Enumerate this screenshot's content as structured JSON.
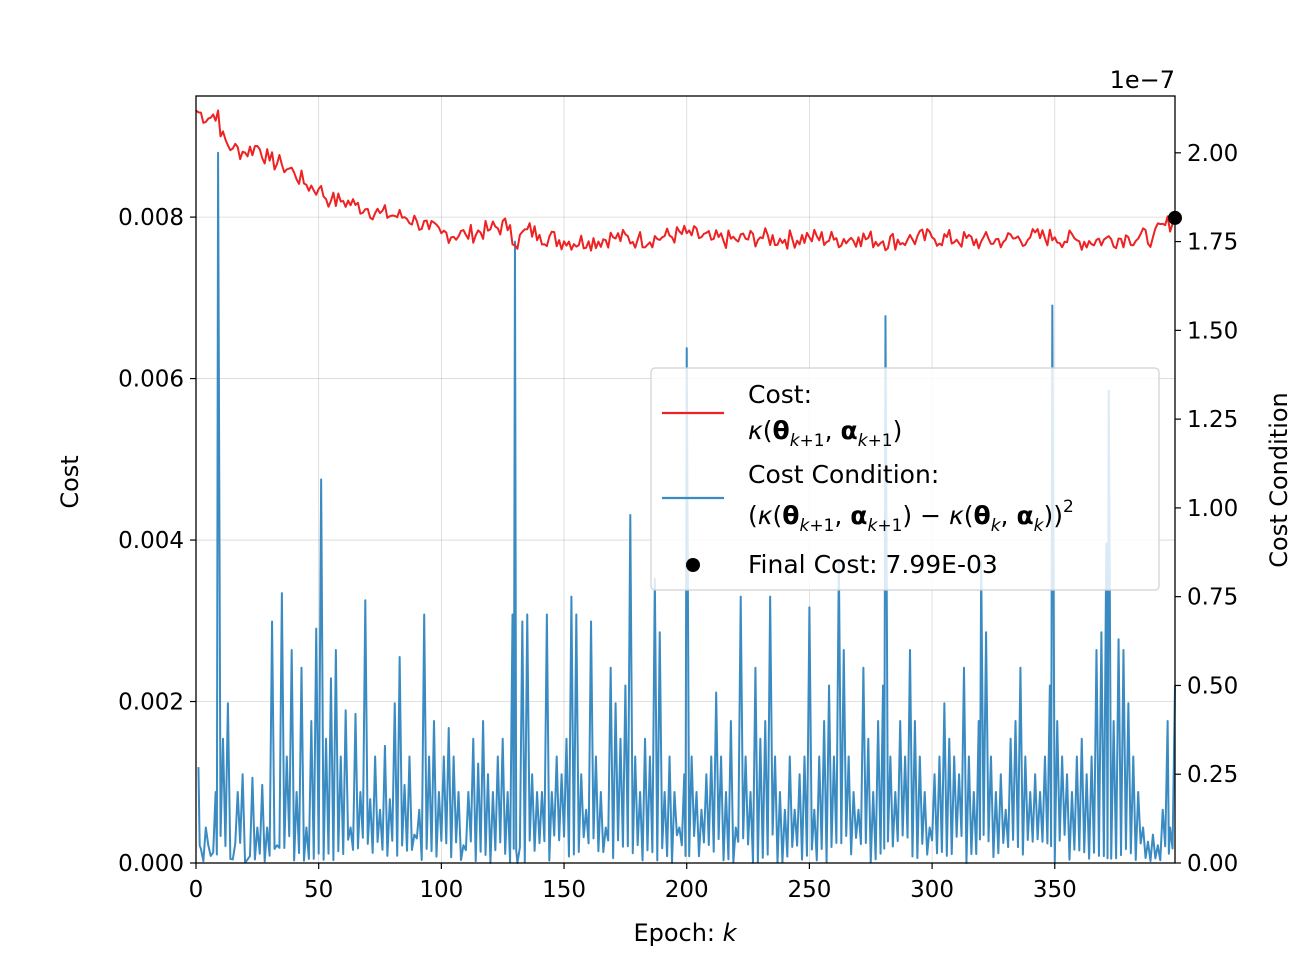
{
  "chart_data": {
    "type": "line",
    "xlabel": "Epoch: ",
    "xlabel_var": "k",
    "ylabel_left": "Cost",
    "ylabel_right": "Cost Condition",
    "right_offset_text": "1e−7",
    "x_range": [
      0,
      399
    ],
    "y_left_range": [
      0.0,
      0.0095
    ],
    "y_right_range": [
      0.0,
      2.16
    ],
    "x_ticks": [
      0,
      50,
      100,
      150,
      200,
      250,
      300,
      350
    ],
    "y_left_ticks": [
      0.0,
      0.002,
      0.004,
      0.006,
      0.008
    ],
    "y_left_tick_labels": [
      "0.000",
      "0.002",
      "0.004",
      "0.006",
      "0.008"
    ],
    "y_right_ticks": [
      0.0,
      0.25,
      0.5,
      0.75,
      1.0,
      1.25,
      1.5,
      1.75,
      2.0
    ],
    "y_right_tick_labels": [
      "0.00",
      "0.25",
      "0.50",
      "0.75",
      "1.00",
      "1.25",
      "1.50",
      "1.75",
      "2.00"
    ],
    "grid": true,
    "legend_position": "right",
    "series": [
      {
        "name": "Cost:",
        "name_math": "κ(θk+1, αk+1)",
        "axis": "left",
        "color": "#ee2222",
        "points": [
          [
            0,
            0.00932
          ],
          [
            5,
            0.00922
          ],
          [
            9,
            0.00932
          ],
          [
            10,
            0.009
          ],
          [
            15,
            0.00885
          ],
          [
            20,
            0.0088
          ],
          [
            25,
            0.00888
          ],
          [
            30,
            0.0087
          ],
          [
            35,
            0.00865
          ],
          [
            40,
            0.00855
          ],
          [
            45,
            0.0084
          ],
          [
            50,
            0.00835
          ],
          [
            55,
            0.0082
          ],
          [
            60,
            0.0082
          ],
          [
            65,
            0.00815
          ],
          [
            70,
            0.0081
          ],
          [
            75,
            0.00805
          ],
          [
            80,
            0.00802
          ],
          [
            85,
            0.008
          ],
          [
            90,
            0.00795
          ],
          [
            95,
            0.00785
          ],
          [
            100,
            0.0078
          ],
          [
            110,
            0.00778
          ],
          [
            120,
            0.00785
          ],
          [
            128,
            0.0079
          ],
          [
            130,
            0.00765
          ],
          [
            135,
            0.00785
          ],
          [
            140,
            0.00778
          ],
          [
            150,
            0.0077
          ],
          [
            160,
            0.0077
          ],
          [
            170,
            0.00775
          ],
          [
            180,
            0.00772
          ],
          [
            190,
            0.00775
          ],
          [
            200,
            0.0078
          ],
          [
            210,
            0.00772
          ],
          [
            220,
            0.00772
          ],
          [
            230,
            0.00775
          ],
          [
            240,
            0.00772
          ],
          [
            250,
            0.00775
          ],
          [
            260,
            0.00772
          ],
          [
            270,
            0.00775
          ],
          [
            280,
            0.0077
          ],
          [
            290,
            0.00772
          ],
          [
            300,
            0.00775
          ],
          [
            310,
            0.00772
          ],
          [
            320,
            0.0077
          ],
          [
            330,
            0.00772
          ],
          [
            340,
            0.00775
          ],
          [
            350,
            0.00775
          ],
          [
            360,
            0.0077
          ],
          [
            370,
            0.00772
          ],
          [
            380,
            0.00775
          ],
          [
            390,
            0.00775
          ],
          [
            399,
            0.00799
          ]
        ]
      },
      {
        "name": "Cost Condition:",
        "name_math": "(κ(θk+1, αk+1) − κ(θk, αk))²",
        "axis": "right",
        "color": "#3a8bc2",
        "spikes": [
          [
            1,
            0.27
          ],
          [
            2,
            0.04
          ],
          [
            4,
            0.1
          ],
          [
            6,
            0.02
          ],
          [
            8,
            0.2
          ],
          [
            9,
            2.0
          ],
          [
            11,
            0.35
          ],
          [
            13,
            0.45
          ],
          [
            15,
            0.01
          ],
          [
            17,
            0.2
          ],
          [
            19,
            0.25
          ],
          [
            21,
            0.01
          ],
          [
            23,
            0.24
          ],
          [
            25,
            0.1
          ],
          [
            27,
            0.22
          ],
          [
            29,
            0.1
          ],
          [
            31,
            0.68
          ],
          [
            33,
            0.05
          ],
          [
            35,
            0.76
          ],
          [
            37,
            0.3
          ],
          [
            39,
            0.6
          ],
          [
            41,
            0.2
          ],
          [
            43,
            0.55
          ],
          [
            45,
            0.1
          ],
          [
            47,
            0.4
          ],
          [
            49,
            0.66
          ],
          [
            51,
            1.08
          ],
          [
            53,
            0.35
          ],
          [
            55,
            0.52
          ],
          [
            57,
            0.6
          ],
          [
            59,
            0.3
          ],
          [
            61,
            0.43
          ],
          [
            63,
            0.1
          ],
          [
            65,
            0.42
          ],
          [
            67,
            0.2
          ],
          [
            69,
            0.74
          ],
          [
            71,
            0.18
          ],
          [
            73,
            0.3
          ],
          [
            75,
            0.15
          ],
          [
            77,
            0.33
          ],
          [
            79,
            0.18
          ],
          [
            81,
            0.45
          ],
          [
            83,
            0.58
          ],
          [
            85,
            0.22
          ],
          [
            87,
            0.3
          ],
          [
            89,
            0.08
          ],
          [
            91,
            0.15
          ],
          [
            93,
            0.7
          ],
          [
            95,
            0.3
          ],
          [
            97,
            0.4
          ],
          [
            99,
            0.2
          ],
          [
            101,
            0.3
          ],
          [
            103,
            0.38
          ],
          [
            105,
            0.3
          ],
          [
            107,
            0.2
          ],
          [
            109,
            0.05
          ],
          [
            111,
            0.2
          ],
          [
            113,
            0.35
          ],
          [
            115,
            0.28
          ],
          [
            117,
            0.4
          ],
          [
            119,
            0.25
          ],
          [
            121,
            0.2
          ],
          [
            123,
            0.3
          ],
          [
            125,
            0.35
          ],
          [
            127,
            0.2
          ],
          [
            129,
            0.7
          ],
          [
            130,
            1.75
          ],
          [
            131,
            0.0
          ],
          [
            133,
            0.68
          ],
          [
            135,
            0.7
          ],
          [
            137,
            0.25
          ],
          [
            139,
            0.2
          ],
          [
            141,
            0.2
          ],
          [
            143,
            0.7
          ],
          [
            145,
            0.2
          ],
          [
            147,
            0.3
          ],
          [
            149,
            0.25
          ],
          [
            151,
            0.35
          ],
          [
            153,
            0.75
          ],
          [
            155,
            0.7
          ],
          [
            157,
            0.25
          ],
          [
            159,
            0.15
          ],
          [
            161,
            0.68
          ],
          [
            163,
            0.3
          ],
          [
            165,
            0.2
          ],
          [
            167,
            0.1
          ],
          [
            169,
            0.55
          ],
          [
            171,
            0.45
          ],
          [
            173,
            0.35
          ],
          [
            175,
            0.5
          ],
          [
            177,
            0.98
          ],
          [
            179,
            0.3
          ],
          [
            181,
            0.2
          ],
          [
            183,
            0.35
          ],
          [
            185,
            0.3
          ],
          [
            187,
            0.8
          ],
          [
            189,
            0.65
          ],
          [
            191,
            0.2
          ],
          [
            193,
            0.3
          ],
          [
            195,
            0.2
          ],
          [
            197,
            0.1
          ],
          [
            199,
            0.25
          ],
          [
            200,
            1.45
          ],
          [
            202,
            0.3
          ],
          [
            204,
            0.2
          ],
          [
            206,
            0.15
          ],
          [
            208,
            0.25
          ],
          [
            210,
            0.3
          ],
          [
            212,
            0.48
          ],
          [
            214,
            0.3
          ],
          [
            216,
            0.2
          ],
          [
            218,
            0.4
          ],
          [
            220,
            0.1
          ],
          [
            222,
            0.75
          ],
          [
            224,
            0.3
          ],
          [
            226,
            0.2
          ],
          [
            228,
            0.55
          ],
          [
            230,
            0.35
          ],
          [
            232,
            0.4
          ],
          [
            234,
            0.75
          ],
          [
            236,
            0.3
          ],
          [
            238,
            0.2
          ],
          [
            240,
            0.15
          ],
          [
            242,
            0.3
          ],
          [
            244,
            0.15
          ],
          [
            246,
            0.25
          ],
          [
            248,
            0.3
          ],
          [
            250,
            0.72
          ],
          [
            252,
            0.15
          ],
          [
            254,
            0.3
          ],
          [
            256,
            0.4
          ],
          [
            258,
            0.5
          ],
          [
            260,
            0.3
          ],
          [
            262,
            0.85
          ],
          [
            264,
            0.6
          ],
          [
            266,
            0.3
          ],
          [
            268,
            0.2
          ],
          [
            270,
            0.15
          ],
          [
            272,
            0.55
          ],
          [
            274,
            0.35
          ],
          [
            276,
            0.2
          ],
          [
            278,
            0.4
          ],
          [
            280,
            0.5
          ],
          [
            281,
            1.54
          ],
          [
            283,
            0.3
          ],
          [
            285,
            0.2
          ],
          [
            287,
            0.4
          ],
          [
            289,
            0.3
          ],
          [
            291,
            0.6
          ],
          [
            293,
            0.4
          ],
          [
            295,
            0.3
          ],
          [
            297,
            0.2
          ],
          [
            299,
            0.1
          ],
          [
            301,
            0.25
          ],
          [
            303,
            0.3
          ],
          [
            305,
            0.45
          ],
          [
            307,
            0.35
          ],
          [
            309,
            0.3
          ],
          [
            311,
            0.25
          ],
          [
            313,
            0.55
          ],
          [
            315,
            0.3
          ],
          [
            317,
            0.2
          ],
          [
            319,
            0.4
          ],
          [
            320,
            0.85
          ],
          [
            322,
            0.65
          ],
          [
            324,
            0.3
          ],
          [
            326,
            0.2
          ],
          [
            328,
            0.25
          ],
          [
            330,
            0.15
          ],
          [
            332,
            0.35
          ],
          [
            334,
            0.4
          ],
          [
            336,
            0.55
          ],
          [
            338,
            0.3
          ],
          [
            340,
            0.2
          ],
          [
            342,
            0.25
          ],
          [
            344,
            0.2
          ],
          [
            346,
            0.3
          ],
          [
            348,
            0.5
          ],
          [
            349,
            1.57
          ],
          [
            351,
            0.4
          ],
          [
            353,
            0.3
          ],
          [
            355,
            0.25
          ],
          [
            357,
            0.2
          ],
          [
            359,
            0.3
          ],
          [
            361,
            0.35
          ],
          [
            363,
            0.25
          ],
          [
            365,
            0.3
          ],
          [
            367,
            0.6
          ],
          [
            369,
            0.65
          ],
          [
            371,
            0.9
          ],
          [
            372,
            1.33
          ],
          [
            374,
            0.4
          ],
          [
            376,
            0.63
          ],
          [
            378,
            0.6
          ],
          [
            380,
            0.45
          ],
          [
            382,
            0.3
          ],
          [
            384,
            0.2
          ],
          [
            386,
            0.1
          ],
          [
            388,
            0.06
          ],
          [
            390,
            0.08
          ],
          [
            392,
            0.05
          ],
          [
            394,
            0.15
          ],
          [
            396,
            0.4
          ],
          [
            397,
            0.1
          ],
          [
            399,
            0.5
          ]
        ]
      }
    ],
    "final_point": {
      "label": "Final Cost: 7.99E-03",
      "x": 399,
      "y": 0.00799,
      "color": "#000000"
    }
  }
}
